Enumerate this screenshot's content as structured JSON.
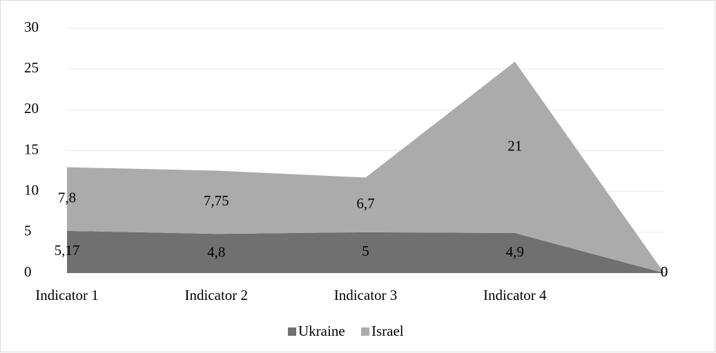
{
  "chart_data": {
    "type": "area",
    "stacked": true,
    "categories": [
      "Indicator 1",
      "Indicator 2",
      "Indicator 3",
      "Indicator 4",
      null
    ],
    "series": [
      {
        "name": "Ukraine",
        "color": "#707070",
        "values": [
          5.17,
          4.8,
          5,
          4.9,
          0
        ],
        "value_labels": [
          "5,17",
          "4,8",
          "5",
          "4,9",
          "0"
        ]
      },
      {
        "name": "Israel",
        "color": "#ababab",
        "values": [
          7.8,
          7.75,
          6.7,
          21,
          0
        ],
        "value_labels": [
          "7,8",
          "7,75",
          "6,7",
          "21",
          "0"
        ]
      }
    ],
    "ylim": [
      0,
      30
    ],
    "yticks": [
      0,
      5,
      10,
      15,
      20,
      25,
      30
    ],
    "grid": true,
    "legend": "bottom"
  }
}
